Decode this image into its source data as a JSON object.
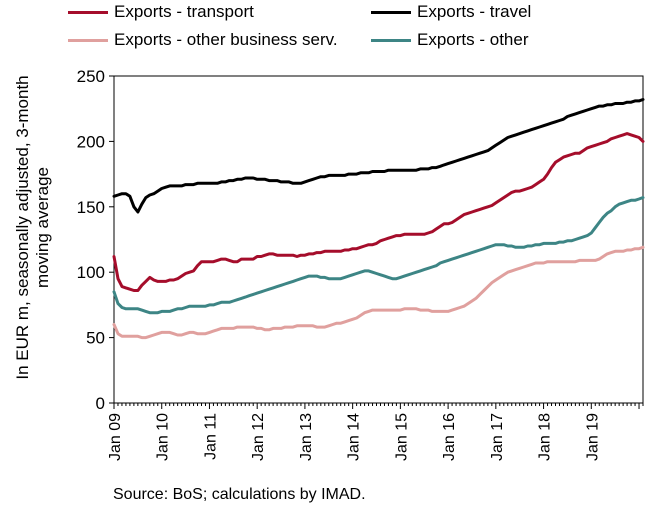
{
  "chart_data": {
    "type": "line",
    "title": "",
    "ylabel": "In EUR m, seasonally adjusted, 3-month moving average",
    "ylabel_lines": [
      "In EUR m, seasonally adjusted, 3-month",
      "moving average"
    ],
    "ylim": [
      0,
      250
    ],
    "yticks": [
      0,
      50,
      100,
      150,
      200,
      250
    ],
    "x_start": "2009-01",
    "x_step": "month",
    "xtick_labels": [
      "Jan 09",
      "Jan 10",
      "Jan 11",
      "Jan 12",
      "Jan 13",
      "Jan 14",
      "Jan 15",
      "Jan 16",
      "Jan 17",
      "Jan 18",
      "Jan 19"
    ],
    "grid": false,
    "legend_position": "top",
    "series": [
      {
        "name": "Exports - transport",
        "color": "#a50d2b",
        "values": [
          112,
          95,
          89,
          88,
          87,
          86,
          86,
          90,
          93,
          96,
          94,
          93,
          93,
          93,
          94,
          94,
          95,
          97,
          99,
          100,
          101,
          105,
          108,
          108,
          108,
          108,
          109,
          110,
          110,
          109,
          108,
          108,
          110,
          110,
          110,
          110,
          112,
          112,
          113,
          114,
          114,
          113,
          113,
          113,
          113,
          113,
          112,
          113,
          113,
          114,
          114,
          115,
          115,
          116,
          116,
          116,
          116,
          116,
          117,
          117,
          118,
          118,
          119,
          120,
          121,
          121,
          122,
          124,
          125,
          126,
          127,
          128,
          128,
          129,
          129,
          129,
          129,
          129,
          129,
          130,
          131,
          133,
          135,
          137,
          137,
          138,
          140,
          142,
          144,
          145,
          146,
          147,
          148,
          149,
          150,
          151,
          153,
          155,
          157,
          159,
          161,
          162,
          162,
          163,
          164,
          165,
          167,
          169,
          171,
          175,
          180,
          184,
          186,
          188,
          189,
          190,
          191,
          191,
          193,
          195,
          196,
          197,
          198,
          199,
          200,
          202,
          203,
          204,
          205,
          206,
          205,
          204,
          203,
          200
        ]
      },
      {
        "name": "Exports - travel",
        "color": "#000000",
        "values": [
          158,
          159,
          160,
          160,
          158,
          150,
          146,
          152,
          157,
          159,
          160,
          162,
          164,
          165,
          166,
          166,
          166,
          166,
          167,
          167,
          167,
          168,
          168,
          168,
          168,
          168,
          168,
          169,
          169,
          170,
          170,
          171,
          171,
          172,
          172,
          172,
          171,
          171,
          171,
          170,
          170,
          170,
          169,
          169,
          169,
          168,
          168,
          168,
          169,
          170,
          171,
          172,
          173,
          173,
          174,
          174,
          174,
          174,
          174,
          175,
          175,
          175,
          176,
          176,
          176,
          177,
          177,
          177,
          177,
          178,
          178,
          178,
          178,
          178,
          178,
          178,
          178,
          179,
          179,
          179,
          180,
          180,
          181,
          182,
          183,
          184,
          185,
          186,
          187,
          188,
          189,
          190,
          191,
          192,
          193,
          195,
          197,
          199,
          201,
          203,
          204,
          205,
          206,
          207,
          208,
          209,
          210,
          211,
          212,
          213,
          214,
          215,
          216,
          217,
          219,
          220,
          221,
          222,
          223,
          224,
          225,
          226,
          227,
          227,
          228,
          228,
          229,
          229,
          229,
          230,
          230,
          231,
          231,
          232
        ]
      },
      {
        "name": "Exports - other business serv.",
        "color": "#e0a09e",
        "values": [
          60,
          53,
          51,
          51,
          51,
          51,
          51,
          50,
          50,
          51,
          52,
          53,
          54,
          54,
          54,
          53,
          52,
          52,
          53,
          54,
          54,
          53,
          53,
          53,
          54,
          55,
          56,
          57,
          57,
          57,
          57,
          58,
          58,
          58,
          58,
          58,
          57,
          57,
          56,
          56,
          57,
          57,
          57,
          58,
          58,
          58,
          59,
          59,
          59,
          59,
          59,
          58,
          58,
          58,
          59,
          60,
          61,
          61,
          62,
          63,
          64,
          65,
          67,
          69,
          70,
          71,
          71,
          71,
          71,
          71,
          71,
          71,
          71,
          72,
          72,
          72,
          72,
          71,
          71,
          71,
          70,
          70,
          70,
          70,
          70,
          71,
          72,
          73,
          74,
          76,
          78,
          80,
          83,
          86,
          89,
          92,
          94,
          96,
          98,
          100,
          101,
          102,
          103,
          104,
          105,
          106,
          107,
          107,
          107,
          108,
          108,
          108,
          108,
          108,
          108,
          108,
          108,
          109,
          109,
          109,
          109,
          109,
          110,
          112,
          114,
          115,
          116,
          116,
          116,
          117,
          117,
          118,
          118,
          119
        ]
      },
      {
        "name": "Exports - other",
        "color": "#3d8585",
        "values": [
          85,
          76,
          73,
          72,
          72,
          72,
          72,
          71,
          70,
          69,
          69,
          69,
          70,
          70,
          70,
          71,
          72,
          72,
          73,
          74,
          74,
          74,
          74,
          74,
          75,
          75,
          76,
          77,
          77,
          77,
          78,
          79,
          80,
          81,
          82,
          83,
          84,
          85,
          86,
          87,
          88,
          89,
          90,
          91,
          92,
          93,
          94,
          95,
          96,
          97,
          97,
          97,
          96,
          96,
          95,
          95,
          95,
          95,
          96,
          97,
          98,
          99,
          100,
          101,
          101,
          100,
          99,
          98,
          97,
          96,
          95,
          95,
          96,
          97,
          98,
          99,
          100,
          101,
          102,
          103,
          104,
          105,
          107,
          108,
          109,
          110,
          111,
          112,
          113,
          114,
          115,
          116,
          117,
          118,
          119,
          120,
          121,
          121,
          121,
          120,
          120,
          119,
          119,
          119,
          120,
          120,
          121,
          121,
          122,
          122,
          122,
          122,
          123,
          123,
          124,
          124,
          125,
          126,
          127,
          128,
          130,
          134,
          138,
          142,
          145,
          147,
          150,
          152,
          153,
          154,
          155,
          155,
          156,
          157
        ]
      }
    ]
  },
  "source_note": "Source: BoS; calculations by IMAD."
}
